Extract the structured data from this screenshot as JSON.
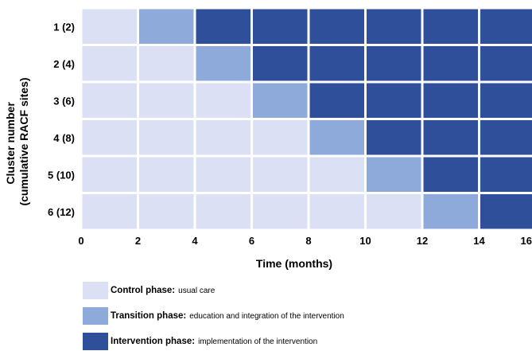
{
  "rows": [
    {
      "label": "1 (2)"
    },
    {
      "label": "2 (4)"
    },
    {
      "label": "3 (6)"
    },
    {
      "label": "4 (8)"
    },
    {
      "label": "5 (10)"
    },
    {
      "label": "6 (12)"
    }
  ],
  "periods": [
    0,
    2,
    4,
    6,
    8,
    10,
    12,
    14,
    16
  ],
  "x_tick_labels": [
    "0",
    "2",
    "4",
    "6",
    "8",
    "10",
    "12",
    "14",
    "16"
  ],
  "phase_grid": [
    [
      "control",
      "transition",
      "intervention",
      "intervention",
      "intervention",
      "intervention",
      "intervention",
      "intervention"
    ],
    [
      "control",
      "control",
      "transition",
      "intervention",
      "intervention",
      "intervention",
      "intervention",
      "intervention"
    ],
    [
      "control",
      "control",
      "control",
      "transition",
      "intervention",
      "intervention",
      "intervention",
      "intervention"
    ],
    [
      "control",
      "control",
      "control",
      "control",
      "transition",
      "intervention",
      "intervention",
      "intervention"
    ],
    [
      "control",
      "control",
      "control",
      "control",
      "control",
      "transition",
      "intervention",
      "intervention"
    ],
    [
      "control",
      "control",
      "control",
      "control",
      "control",
      "control",
      "transition",
      "intervention"
    ]
  ],
  "axes": {
    "y_title_line1": "Cluster number",
    "y_title_line2": "(cumulative RACF sites)",
    "x_title": "Time (months)"
  },
  "colors": {
    "control": "#dbe0f4",
    "transition": "#8eaadb",
    "intervention": "#2f4f9b"
  },
  "legend": [
    {
      "key": "control",
      "label": "Control phase:",
      "desc": "usual care"
    },
    {
      "key": "transition",
      "label": "Transition phase:",
      "desc": "education and integration of the intervention"
    },
    {
      "key": "intervention",
      "label": "Intervention phase:",
      "desc": "implementation of the intervention"
    }
  ]
}
